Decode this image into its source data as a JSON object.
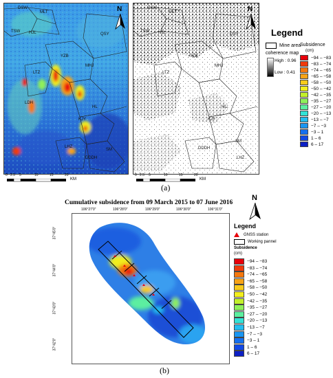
{
  "panel_a": {
    "caption": "(a)",
    "north_label": "N",
    "scalebar": {
      "ticks": [
        "0",
        "2.5",
        "5",
        "10",
        "15",
        "20"
      ],
      "unit": "KM"
    },
    "scalebar_right": {
      "ticks": [
        "0",
        "2.5",
        "5",
        "10",
        "15",
        "20"
      ],
      "unit": "KM"
    },
    "zone_labels_left": [
      "DSW",
      "MLT",
      "TSW",
      "HJL",
      "QSY",
      "LTZ",
      "MHJ",
      "YZB",
      "LDH",
      "KJY",
      "LHZ",
      "HL",
      "SM",
      "DDDH"
    ],
    "zone_labels_right": [
      "DSW",
      "MLT",
      "TSW",
      "HJL",
      "QSY",
      "LTZ",
      "MHJ",
      "YZB",
      "HL",
      "KJY",
      "SM",
      "DDDH",
      "LHZ"
    ],
    "legend": {
      "title": "Legend",
      "mine_area_label": "Mine area",
      "coherence_label": "coherence map",
      "high_label": "High : 0.96",
      "low_label": "Low : 0.41",
      "subsidence_label": "Subsidence",
      "unit_label": "(cm)",
      "classes": [
        {
          "label": "−94 – −83",
          "color": "#e8000b"
        },
        {
          "label": "−83 – −74",
          "color": "#f03a0c"
        },
        {
          "label": "−74 – −65",
          "color": "#f5780e"
        },
        {
          "label": "−65 – −58",
          "color": "#f7a316"
        },
        {
          "label": "−58 – −50",
          "color": "#f8cb1b"
        },
        {
          "label": "−50 – −42",
          "color": "#f2ee1e"
        },
        {
          "label": "−42 – −35",
          "color": "#c2f02a"
        },
        {
          "label": "−35 – −27",
          "color": "#8ff05a"
        },
        {
          "label": "−27 – −20",
          "color": "#5cefa0"
        },
        {
          "label": "−20 – −13",
          "color": "#33e2d6"
        },
        {
          "label": "−13 – −7",
          "color": "#24bdf0"
        },
        {
          "label": "−7 – −3",
          "color": "#1a96f2"
        },
        {
          "label": "−3 – 1",
          "color": "#1570f0"
        },
        {
          "label": "1 – 6",
          "color": "#1249e6"
        },
        {
          "label": "6 – 17",
          "color": "#0d20c4"
        }
      ]
    }
  },
  "panel_b": {
    "title": "Cumulative subsidence from 09 March 2015 to 07 June 2016",
    "caption": "(b)",
    "north_label": "N",
    "lon_ticks": [
      "106°27'0\"",
      "106°28'0\"",
      "106°29'0\"",
      "106°30'0\"",
      "106°31'0\""
    ],
    "lat_ticks": [
      "37°45'0\"",
      "37°44'0\"",
      "37°43'0\"",
      "37°42'0\"",
      "37°41'0\""
    ],
    "legend": {
      "title": "Legend",
      "gnss_label": "GNSS station",
      "panel_label": "Working pannel",
      "subsidence_label": "Subsidence",
      "unit_label": "(cm)",
      "classes": [
        {
          "label": "−94 – −83",
          "color": "#e8000b"
        },
        {
          "label": "−83 – −74",
          "color": "#f03a0c"
        },
        {
          "label": "−74 – −65",
          "color": "#f5780e"
        },
        {
          "label": "−65 – −58",
          "color": "#f7a316"
        },
        {
          "label": "−58 – −50",
          "color": "#f8cb1b"
        },
        {
          "label": "−50 – −42",
          "color": "#f2ee1e"
        },
        {
          "label": "−42 – −35",
          "color": "#c2f02a"
        },
        {
          "label": "−35 – −27",
          "color": "#8ff05a"
        },
        {
          "label": "−27 – −20",
          "color": "#5cefa0"
        },
        {
          "label": "−20 – −13",
          "color": "#33e2d6"
        },
        {
          "label": "−13 – −7",
          "color": "#24bdf0"
        },
        {
          "label": "−7 – −3",
          "color": "#1a96f2"
        },
        {
          "label": "−3 – 1",
          "color": "#1570f0"
        },
        {
          "label": "1 – 6",
          "color": "#1249e6"
        },
        {
          "label": "6 – 17",
          "color": "#0d20c4"
        }
      ]
    }
  }
}
